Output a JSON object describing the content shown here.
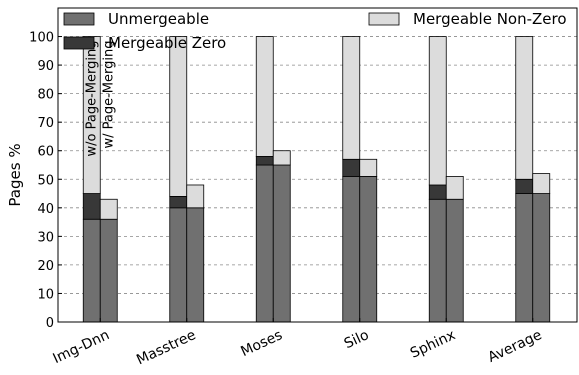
{
  "chart_data": {
    "type": "bar",
    "stacked": true,
    "grouped": true,
    "ylabel": "Pages %",
    "xlabel": "",
    "ylim": [
      0,
      110
    ],
    "yticks": [
      0,
      10,
      20,
      30,
      40,
      50,
      60,
      70,
      80,
      90,
      100
    ],
    "grid": "horizontal dashed",
    "legend_position": "top",
    "categories": [
      "Img-Dnn",
      "Masstree",
      "Moses",
      "Silo",
      "Sphinx",
      "Average"
    ],
    "bar_labels": [
      "w/o Page-Merging",
      "w/ Page-Merging"
    ],
    "series": [
      {
        "name": "Unmergeable",
        "color": "#707070",
        "without": [
          36,
          40,
          55,
          51,
          43,
          45
        ],
        "with": [
          36,
          40,
          55,
          51,
          43,
          45
        ]
      },
      {
        "name": "Mergeable Zero",
        "color": "#383838",
        "without": [
          9,
          4,
          3,
          6,
          5,
          5
        ],
        "with": [
          0,
          0,
          0,
          0,
          0,
          0
        ]
      },
      {
        "name": "Mergeable Non-Zero",
        "color": "#dcdcdc",
        "without": [
          55,
          56,
          42,
          43,
          52,
          50
        ],
        "with": [
          7,
          8,
          5,
          6,
          8,
          7
        ]
      }
    ]
  }
}
